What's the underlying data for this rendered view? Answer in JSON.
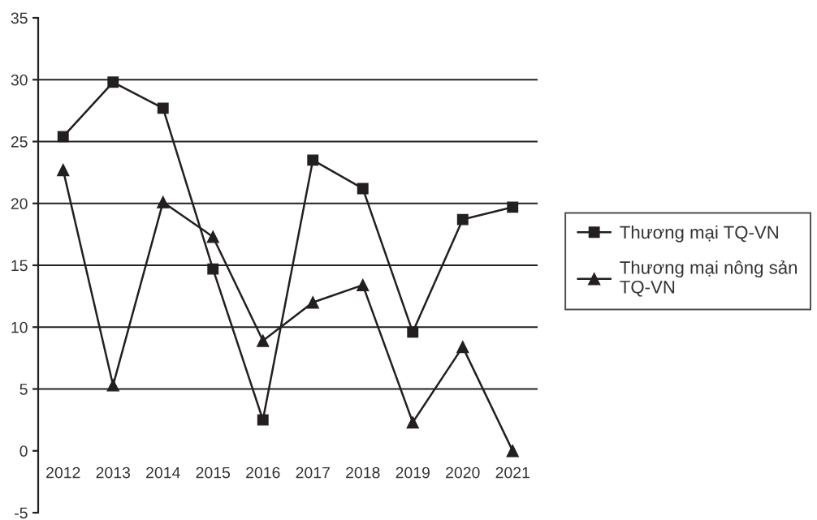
{
  "chart_data": {
    "type": "line",
    "categories": [
      "2012",
      "2013",
      "2014",
      "2015",
      "2016",
      "2017",
      "2018",
      "2019",
      "2020",
      "2021"
    ],
    "series": [
      {
        "name": "Thương mại TQ-VN",
        "color": "#231f20",
        "marker": "square",
        "values": [
          25.4,
          29.8,
          27.7,
          14.7,
          2.5,
          23.5,
          21.2,
          9.6,
          18.7,
          19.7
        ]
      },
      {
        "name": "Thương mại nông sản TQ-VN",
        "color": "#231f20",
        "marker": "triangle",
        "values": [
          22.7,
          5.3,
          20.1,
          17.3,
          8.9,
          12.0,
          13.4,
          2.3,
          8.4,
          0.0
        ]
      }
    ],
    "ylim": [
      -5,
      35
    ],
    "yticks": [
      -5,
      0,
      5,
      10,
      15,
      20,
      25,
      30,
      35
    ],
    "grid": "y",
    "legend": "right",
    "line_style": "solid"
  }
}
